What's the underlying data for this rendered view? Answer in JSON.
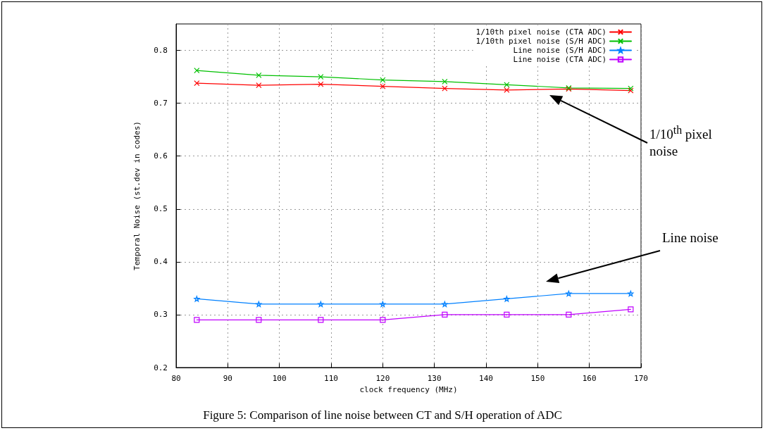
{
  "chart_data": {
    "type": "line",
    "xlabel": "clock frequency (MHz)",
    "ylabel": "Temporal Noise (st.dev in codes)",
    "x": [
      84,
      96,
      108,
      120,
      132,
      144,
      156,
      168
    ],
    "series": [
      {
        "name": "1/10th pixel noise (CTA ADC)",
        "color": "#ff0000",
        "marker": "cross",
        "values": [
          0.738,
          0.734,
          0.736,
          0.732,
          0.728,
          0.725,
          0.727,
          0.724
        ]
      },
      {
        "name": "1/10th pixel noise (S/H ADC)",
        "color": "#00c000",
        "marker": "cross",
        "values": [
          0.762,
          0.753,
          0.75,
          0.744,
          0.741,
          0.735,
          0.729,
          0.728
        ]
      },
      {
        "name": "Line noise (S/H ADC)",
        "color": "#0080ff",
        "marker": "star",
        "values": [
          0.33,
          0.32,
          0.32,
          0.32,
          0.32,
          0.33,
          0.34,
          0.34
        ]
      },
      {
        "name": "Line noise (CTA ADC)",
        "color": "#c000ff",
        "marker": "square",
        "values": [
          0.29,
          0.29,
          0.29,
          0.29,
          0.3,
          0.3,
          0.3,
          0.31
        ]
      }
    ],
    "xlim": [
      80,
      170
    ],
    "xticks": [
      80,
      90,
      100,
      110,
      120,
      130,
      140,
      150,
      160,
      170
    ],
    "ylim": [
      0.2,
      0.85
    ],
    "yticks": [
      0.2,
      0.3,
      0.4,
      0.5,
      0.6,
      0.7,
      0.8
    ],
    "grid": true,
    "legend": "top right",
    "line_style": "solid",
    "annotations": [
      "1/10$^{th}$ pixel noise",
      "Line noise",
      "Figure 5: Comparison of line noise between CT and S/H operation of ADC"
    ]
  }
}
